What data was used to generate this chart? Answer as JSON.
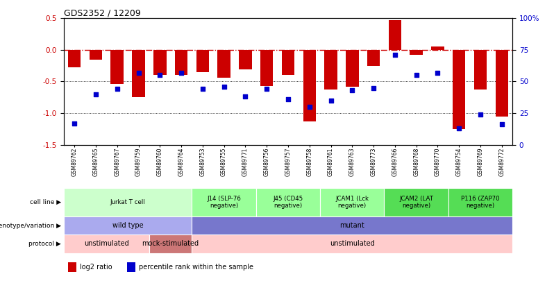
{
  "title": "GDS2352 / 12209",
  "samples": [
    "GSM89762",
    "GSM89765",
    "GSM89767",
    "GSM89759",
    "GSM89760",
    "GSM89764",
    "GSM89753",
    "GSM89755",
    "GSM89771",
    "GSM89756",
    "GSM89757",
    "GSM89758",
    "GSM89761",
    "GSM89763",
    "GSM89773",
    "GSM89766",
    "GSM89768",
    "GSM89770",
    "GSM89754",
    "GSM89769",
    "GSM89772"
  ],
  "log2_ratio": [
    -0.28,
    -0.16,
    -0.54,
    -0.75,
    -0.4,
    -0.4,
    -0.35,
    -0.44,
    -0.31,
    -0.57,
    -0.4,
    -1.13,
    -0.63,
    -0.58,
    -0.25,
    0.47,
    -0.08,
    0.05,
    -1.25,
    -0.63,
    -1.05
  ],
  "percentile": [
    17,
    40,
    44,
    57,
    55,
    57,
    44,
    46,
    38,
    44,
    36,
    30,
    35,
    43,
    45,
    71,
    55,
    57,
    13,
    24,
    16
  ],
  "bar_color": "#cc0000",
  "dot_color": "#0000cc",
  "ref_line_color": "#cc0000",
  "dotted_line_color": "#000000",
  "ylim_left": [
    -1.5,
    0.5
  ],
  "ylim_right": [
    0,
    100
  ],
  "yticks_left": [
    -1.5,
    -1.0,
    -0.5,
    0.0,
    0.5
  ],
  "yticks_right": [
    0,
    25,
    50,
    75,
    100
  ],
  "ytick_labels_right": [
    "0",
    "25",
    "50",
    "75",
    "100%"
  ],
  "cell_line_groups": [
    {
      "label": "Jurkat T cell",
      "start": 0,
      "end": 6,
      "color": "#ccffcc"
    },
    {
      "label": "J14 (SLP-76\nnegative)",
      "start": 6,
      "end": 9,
      "color": "#99ff99"
    },
    {
      "label": "J45 (CD45\nnegative)",
      "start": 9,
      "end": 12,
      "color": "#99ff99"
    },
    {
      "label": "JCAM1 (Lck\nnegative)",
      "start": 12,
      "end": 15,
      "color": "#99ff99"
    },
    {
      "label": "JCAM2 (LAT\nnegative)",
      "start": 15,
      "end": 18,
      "color": "#55dd55"
    },
    {
      "label": "P116 (ZAP70\nnegative)",
      "start": 18,
      "end": 21,
      "color": "#55dd55"
    }
  ],
  "genotype_groups": [
    {
      "label": "wild type",
      "start": 0,
      "end": 6,
      "color": "#aaaaee"
    },
    {
      "label": "mutant",
      "start": 6,
      "end": 21,
      "color": "#7777cc"
    }
  ],
  "protocol_groups": [
    {
      "label": "unstimulated",
      "start": 0,
      "end": 4,
      "color": "#ffcccc"
    },
    {
      "label": "mock-stimulated",
      "start": 4,
      "end": 6,
      "color": "#cc7777"
    },
    {
      "label": "unstimulated",
      "start": 6,
      "end": 21,
      "color": "#ffcccc"
    }
  ],
  "row_labels": [
    "cell line",
    "genotype/variation",
    "protocol"
  ],
  "legend_items": [
    {
      "color": "#cc0000",
      "label": "log2 ratio"
    },
    {
      "color": "#0000cc",
      "label": "percentile rank within the sample"
    }
  ]
}
